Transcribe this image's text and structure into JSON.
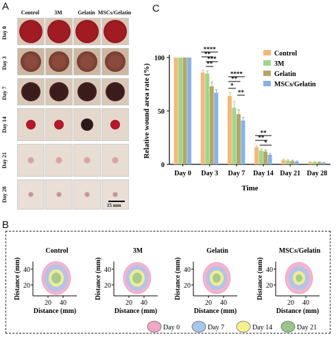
{
  "panelA": {
    "letter": "A",
    "columns": [
      "Control",
      "3M",
      "Gelatin",
      "MSCs/Gelatin"
    ],
    "rows": [
      "Day 0",
      "Day 3",
      "Day 7",
      "Day 14",
      "Day 21",
      "Day 28"
    ],
    "scale_bar": "15 mm"
  },
  "panelB": {
    "letter": "B",
    "plots": [
      {
        "title": "Control"
      },
      {
        "title": "3M"
      },
      {
        "title": "Gelatin"
      },
      {
        "title": "MSCs/Gelatin"
      }
    ],
    "xlabel": "Distance (mm)",
    "ylabel": "Distance (mm)",
    "xticks": [
      "20",
      "40"
    ],
    "yticks": [
      "40",
      "20"
    ],
    "legend": [
      {
        "label": "Day 0",
        "color": "#f2a7c7"
      },
      {
        "label": "Day  7",
        "color": "#a9c6ea"
      },
      {
        "label": "Day  14",
        "color": "#f4f28c"
      },
      {
        "label": "Day  21",
        "color": "#9cc58a"
      }
    ]
  },
  "panelC": {
    "letter": "C"
  },
  "chart_data": {
    "type": "bar",
    "title": "",
    "xlabel": "Time",
    "ylabel": "Relative wound area rate (%)",
    "ylim": [
      0,
      100
    ],
    "yticks": [
      0,
      50,
      100
    ],
    "categories": [
      "Day 0",
      "Day 3",
      "Day 7",
      "Day 14",
      "Day 21",
      "Day 28"
    ],
    "series": [
      {
        "name": "Control",
        "color": "#f6b77a",
        "values": [
          100,
          86,
          64,
          16,
          4,
          2
        ],
        "errors": [
          0,
          2,
          3,
          1.5,
          0.8,
          0.5
        ]
      },
      {
        "name": "3M",
        "color": "#9fd68c",
        "values": [
          100,
          85,
          53,
          13,
          3.5,
          2
        ],
        "errors": [
          0,
          2.5,
          6,
          1.5,
          0.8,
          0.5
        ]
      },
      {
        "name": "Gelatin",
        "color": "#b3a766",
        "values": [
          100,
          73,
          47,
          12,
          3,
          1.8
        ],
        "errors": [
          0,
          4,
          4,
          1.5,
          0.8,
          0.5
        ]
      },
      {
        "name": "MSCs/Gelatin",
        "color": "#88b2e3",
        "values": [
          100,
          67,
          41,
          9,
          2.5,
          1.5
        ],
        "errors": [
          0,
          3,
          3,
          1.2,
          0.6,
          0.4
        ]
      }
    ],
    "significance": [
      {
        "category": "Day 3",
        "labels": [
          "****",
          "**",
          "***",
          "**"
        ]
      },
      {
        "category": "Day 7",
        "labels": [
          "****",
          "**",
          "*",
          "**"
        ]
      },
      {
        "category": "Day 14",
        "labels": [
          "**",
          "**",
          "*"
        ]
      }
    ],
    "legend_position": "top-right"
  }
}
